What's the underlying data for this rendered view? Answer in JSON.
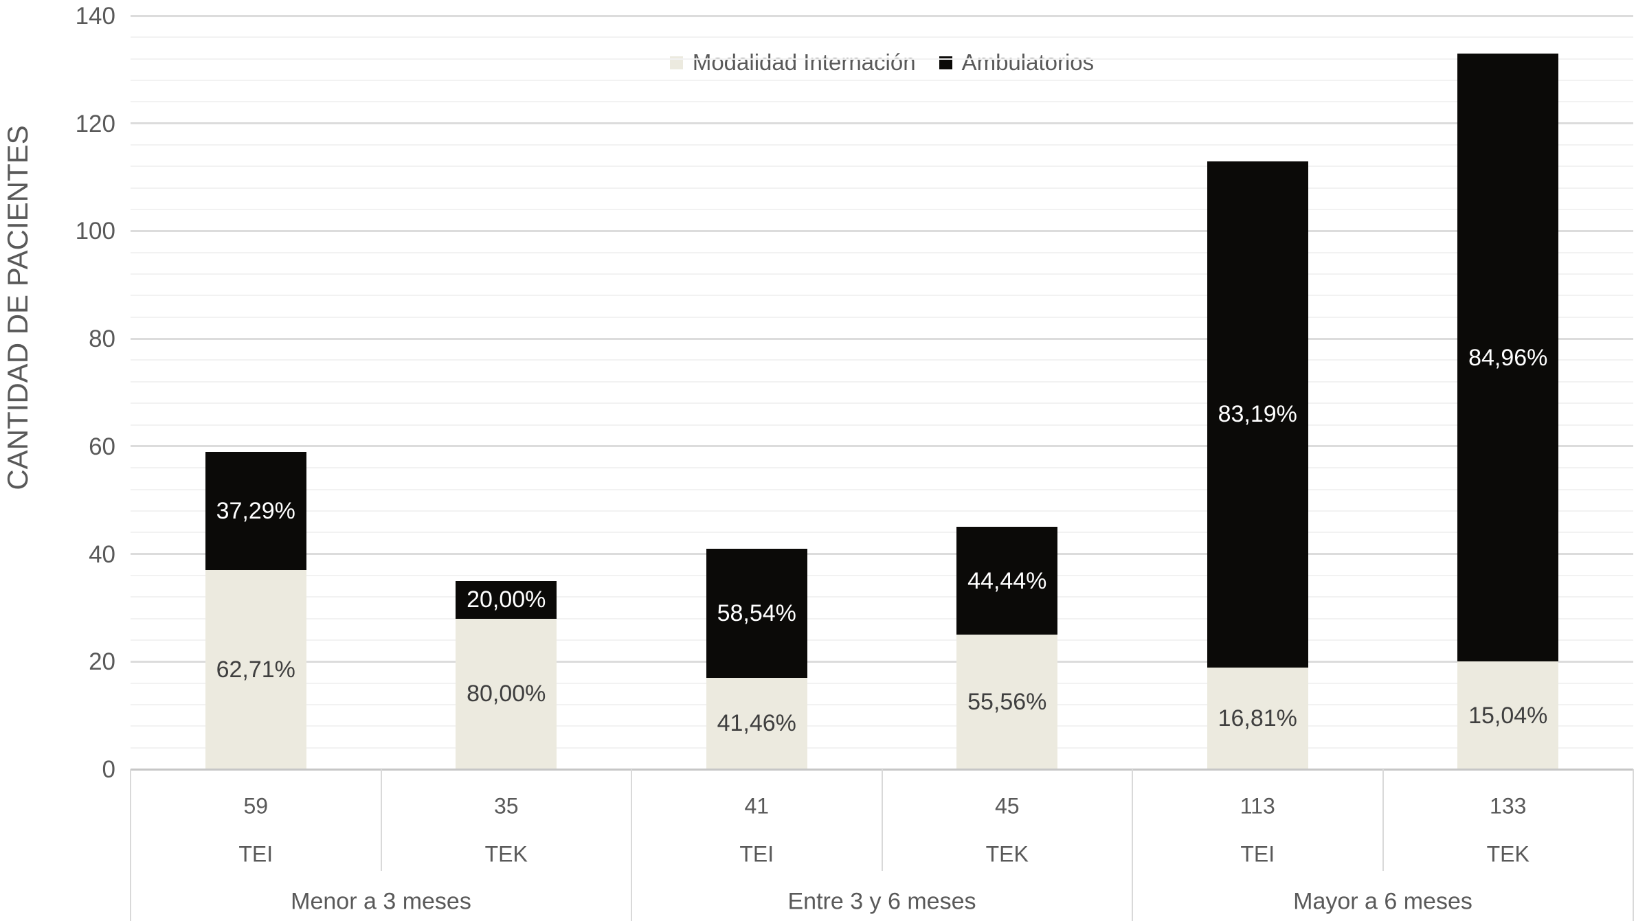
{
  "chart_data": {
    "type": "bar",
    "stacked": true,
    "title": "",
    "xlabel": "",
    "ylabel": "CANTIDAD DE PACIENTES",
    "ylim": [
      0,
      140
    ],
    "y_major_tick_step": 20,
    "y_minor_tick_step": 4,
    "y_ticks": [
      "0",
      "20",
      "40",
      "60",
      "80",
      "100",
      "120",
      "140"
    ],
    "grid": "on",
    "legend_position": "top-center",
    "legend": [
      {
        "name": "Modalidad Internación",
        "color": "#eceadf"
      },
      {
        "name": "Ambulatorios",
        "color": "#0b0a08"
      }
    ],
    "groups": [
      "Menor a 3 meses",
      "Entre 3 y 6 meses",
      "Mayor a 6 meses"
    ],
    "categories": [
      "TEI",
      "TEK",
      "TEI",
      "TEK",
      "TEI",
      "TEK"
    ],
    "totals": [
      "59",
      "35",
      "41",
      "45",
      "113",
      "133"
    ],
    "series": [
      {
        "name": "Modalidad Internación",
        "values": [
          37,
          28,
          17,
          25,
          19,
          20
        ]
      },
      {
        "name": "Ambulatorios",
        "values": [
          22,
          7,
          24,
          20,
          94,
          113
        ]
      }
    ],
    "bars": [
      {
        "group": "Menor a 3 meses",
        "label": "TEI",
        "total": "59",
        "pct_internacion": "62,71%",
        "pct_ambulatorios": "37,29%"
      },
      {
        "group": "Menor a 3 meses",
        "label": "TEK",
        "total": "35",
        "pct_internacion": "80,00%",
        "pct_ambulatorios": "20,00%"
      },
      {
        "group": "Entre 3 y 6 meses",
        "label": "TEI",
        "total": "41",
        "pct_internacion": "41,46%",
        "pct_ambulatorios": "58,54%"
      },
      {
        "group": "Entre 3 y 6 meses",
        "label": "TEK",
        "total": "45",
        "pct_internacion": "55,56%",
        "pct_ambulatorios": "44,44%"
      },
      {
        "group": "Mayor a 6 meses",
        "label": "TEI",
        "total": "113",
        "pct_internacion": "16,81%",
        "pct_ambulatorios": "83,19%"
      },
      {
        "group": "Mayor a 6 meses",
        "label": "TEK",
        "total": "133",
        "pct_internacion": "15,04%",
        "pct_ambulatorios": "84,96%"
      }
    ],
    "colors": {
      "internacion": "#eceadf",
      "ambulatorios": "#0b0a08",
      "axis_text": "#595959",
      "grid_minor": "#f2f2f2",
      "grid_major": "#dcdcdc",
      "table_border": "#d9d9d9"
    }
  }
}
